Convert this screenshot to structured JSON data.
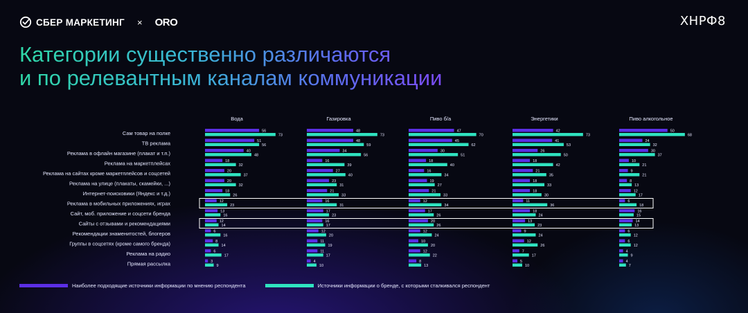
{
  "header": {
    "brand_left": "СБЕР МАРКЕТИНГ",
    "separator": "×",
    "partner": "ORO",
    "brand_right": "ХНРФ8"
  },
  "title": {
    "line1": "Категории существенно различаются",
    "line2": "и по релевантным каналам коммуникации"
  },
  "colors": {
    "series_1": "#5b2fe6",
    "series_2": "#2fe3c0",
    "highlight_box": "#ffffff"
  },
  "chart_data": {
    "type": "bar",
    "orientation": "horizontal",
    "panels": [
      "Вода",
      "Газировка",
      "Пиво б/а",
      "Энергетики",
      "Пиво алкогольное"
    ],
    "categories": [
      "Сам товар на полке",
      "ТВ реклама",
      "Реклама в офлайн магазине (плакат и т.п.)",
      "Реклама на маркетплейсах",
      "Реклама на сайтах кроме маркетплейсов и соцсетей",
      "Реклама на улице (плакаты, скамейки, ...)",
      "Интернет-поисковики (Яндекс и т.д.)",
      "Реклама в мобильных приложениях, играх",
      "Сайт, моб. приложение и соцсети бренда",
      "Сайты с отзывами и рекомендациями",
      "Рекомендации знаменитостей, блогеров",
      "Группы в соцсетях (кроме самого бренда)",
      "Реклама на радио",
      "Прямая рассылка"
    ],
    "highlighted_categories": [
      7,
      9
    ],
    "series": [
      {
        "name": "Наиболее подходящие источники информации по мнению респондента",
        "values": [
          [
            56,
            51,
            40,
            18,
            20,
            20,
            18,
            12,
            13,
            12,
            6,
            8,
            6,
            3
          ],
          [
            48,
            48,
            34,
            16,
            27,
            23,
            21,
            16,
            17,
            16,
            12,
            11,
            11,
            4
          ],
          [
            47,
            45,
            30,
            18,
            16,
            19,
            21,
            12,
            17,
            20,
            12,
            10,
            12,
            8
          ],
          [
            42,
            41,
            26,
            18,
            21,
            18,
            18,
            11,
            18,
            13,
            9,
            12,
            7,
            5
          ],
          [
            50,
            24,
            30,
            10,
            9,
            8,
            12,
            6,
            16,
            14,
            6,
            6,
            4,
            4
          ]
        ]
      },
      {
        "name": "Источники информации о бренде, с которыми сталкивался респондент",
        "values": [
          [
            73,
            56,
            48,
            32,
            37,
            32,
            26,
            23,
            16,
            14,
            16,
            14,
            17,
            9
          ],
          [
            73,
            59,
            56,
            39,
            40,
            31,
            33,
            31,
            23,
            17,
            20,
            19,
            17,
            10
          ],
          [
            70,
            62,
            51,
            40,
            34,
            27,
            33,
            34,
            26,
            26,
            24,
            20,
            22,
            13
          ],
          [
            73,
            53,
            50,
            42,
            35,
            33,
            30,
            36,
            24,
            23,
            24,
            26,
            17,
            10
          ],
          [
            68,
            32,
            37,
            21,
            21,
            13,
            17,
            18,
            15,
            13,
            12,
            12,
            9,
            7
          ]
        ]
      }
    ],
    "legend_position": "bottom-left",
    "grid": false
  },
  "legend": {
    "item1": "Наиболее подходящие источники информации по мнению респондента",
    "item2": "Источники информации о бренде, с которыми сталкивался респондент"
  }
}
